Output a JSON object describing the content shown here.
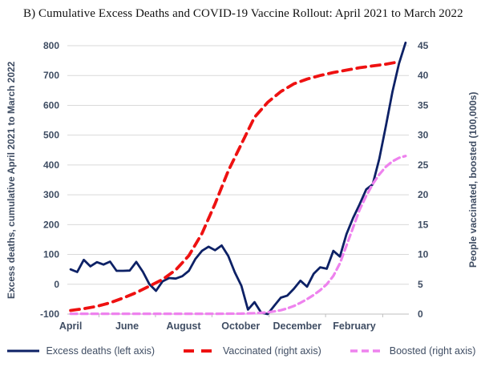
{
  "title": "B)  Cumulative Excess Deaths and COVID-19 Vaccine Rollout: April 2021 to March 2022",
  "palette": {
    "excess_deaths": "#0d2166",
    "vaccinated": "#ee1111",
    "boosted": "#ee82ee",
    "gridline": "#d9d9d9",
    "axis_line": "#bfbfbf",
    "label_text": "#3f4d63",
    "title_text": "#111111"
  },
  "chart_data": {
    "type": "line",
    "title": "B)  Cumulative Excess Deaths and COVID-19 Vaccine Rollout: April 2021 to March 2022",
    "x_unit": "week (Apr 2021 - Mar 2022, 52 weeks)",
    "x_axis": {
      "labels": [
        "April",
        "June",
        "August",
        "October",
        "December",
        "February"
      ],
      "label_week_positions": [
        0,
        8.6,
        17.2,
        25.9,
        34.5,
        43.2
      ]
    },
    "left_axis": {
      "label": "Excess deaths, cumulative April 2021 to March 2022",
      "min": -100,
      "max": 800,
      "ticks": [
        800,
        700,
        600,
        500,
        400,
        300,
        200,
        100,
        0,
        -100
      ]
    },
    "right_axis": {
      "label": "People vaccinated, boosted (100,000s)",
      "min": 0,
      "max": 45,
      "ticks": [
        45,
        40,
        35,
        30,
        25,
        20,
        15,
        10,
        5,
        0
      ]
    },
    "grid": true,
    "legend_position": "bottom",
    "series": [
      {
        "name": "Excess deaths",
        "legend_label": "Excess deaths (left axis)",
        "axis": "left",
        "style": "solid",
        "color": "#0d2166",
        "values": [
          50,
          41,
          82,
          60,
          74,
          66,
          76,
          45,
          45,
          46,
          75,
          42,
          0,
          -22,
          10,
          21,
          19,
          27,
          45,
          85,
          112,
          126,
          114,
          130,
          95,
          40,
          -5,
          -85,
          -60,
          -95,
          -100,
          -72,
          -45,
          -38,
          -15,
          12,
          -8,
          35,
          57,
          52,
          112,
          93,
          168,
          222,
          268,
          318,
          335,
          420,
          530,
          645,
          740,
          810
        ]
      },
      {
        "name": "Vaccinated",
        "legend_label": "Vaccinated (right axis)",
        "axis": "right",
        "style": "dashed",
        "color": "#ee1111",
        "points": [
          [
            0,
            0.6
          ],
          [
            2,
            0.9
          ],
          [
            4,
            1.3
          ],
          [
            6,
            1.9
          ],
          [
            8,
            2.7
          ],
          [
            10,
            3.6
          ],
          [
            12,
            4.7
          ],
          [
            14,
            5.8
          ],
          [
            16,
            7.4
          ],
          [
            18,
            9.8
          ],
          [
            20,
            13.5
          ],
          [
            22,
            18.5
          ],
          [
            24,
            24.0
          ],
          [
            26,
            28.5
          ],
          [
            28,
            33.0
          ],
          [
            30,
            35.5
          ],
          [
            32,
            37.3
          ],
          [
            34,
            38.6
          ],
          [
            36,
            39.4
          ],
          [
            38,
            40.0
          ],
          [
            40,
            40.5
          ],
          [
            42,
            40.9
          ],
          [
            44,
            41.3
          ],
          [
            46,
            41.6
          ],
          [
            48,
            41.9
          ],
          [
            50,
            42.3
          ]
        ]
      },
      {
        "name": "Boosted",
        "legend_label": "Boosted (right axis)",
        "axis": "right",
        "style": "dashed",
        "color": "#ee82ee",
        "points": [
          [
            0,
            0.05
          ],
          [
            8,
            0.05
          ],
          [
            16,
            0.05
          ],
          [
            22,
            0.05
          ],
          [
            26,
            0.08
          ],
          [
            28,
            0.15
          ],
          [
            30,
            0.3
          ],
          [
            31,
            0.45
          ],
          [
            32,
            0.65
          ],
          [
            33,
            0.95
          ],
          [
            34,
            1.35
          ],
          [
            35,
            1.9
          ],
          [
            36,
            2.5
          ],
          [
            37,
            3.2
          ],
          [
            38,
            4.0
          ],
          [
            39,
            5.0
          ],
          [
            40,
            6.4
          ],
          [
            41,
            8.5
          ],
          [
            42,
            11.5
          ],
          [
            43,
            14.5
          ],
          [
            44,
            17.5
          ],
          [
            45,
            19.8
          ],
          [
            46,
            21.8
          ],
          [
            47,
            23.4
          ],
          [
            48,
            24.7
          ],
          [
            49,
            25.6
          ],
          [
            50,
            26.2
          ],
          [
            51,
            26.5
          ]
        ]
      }
    ]
  }
}
